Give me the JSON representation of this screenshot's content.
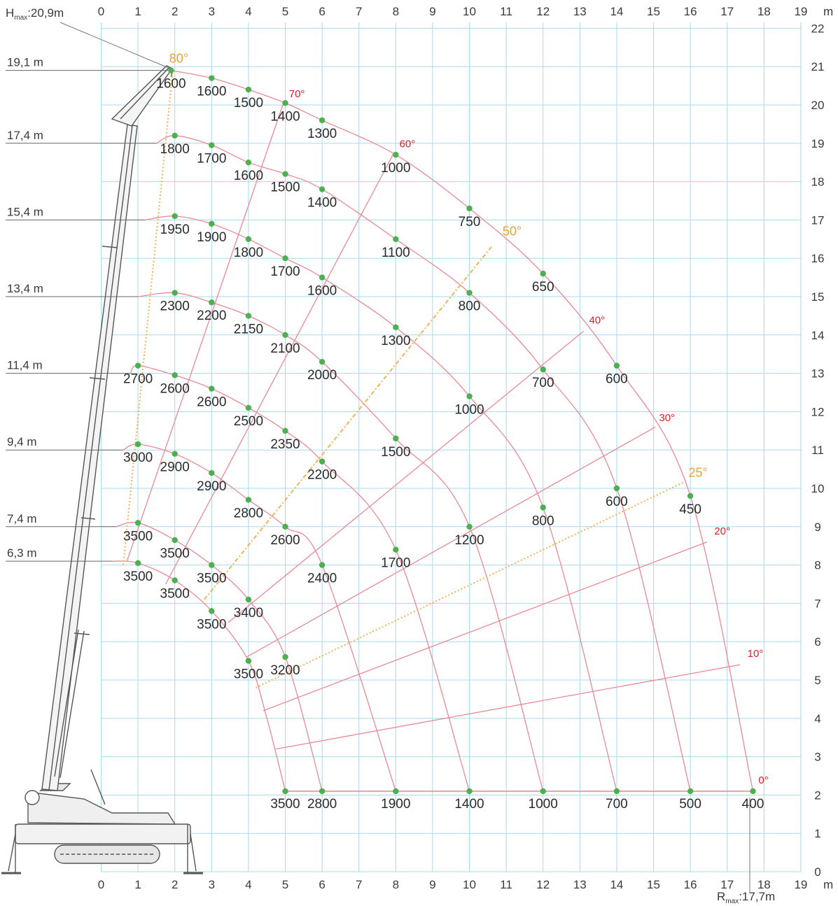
{
  "chart_data": {
    "type": "load-chart",
    "x_unit": "m",
    "y_unit": "m",
    "x_ticks": [
      "0",
      "1",
      "2",
      "3",
      "4",
      "5",
      "6",
      "7",
      "8",
      "9",
      "10",
      "11",
      "12",
      "13",
      "14",
      "15",
      "16",
      "17",
      "18",
      "19"
    ],
    "y_ticks": [
      "0",
      "1",
      "2",
      "3",
      "4",
      "5",
      "6",
      "7",
      "8",
      "9",
      "10",
      "11",
      "12",
      "13",
      "14",
      "15",
      "16",
      "17",
      "18",
      "19",
      "20",
      "21",
      "22"
    ],
    "xlim": [
      0,
      19
    ],
    "ylim": [
      0,
      22
    ],
    "grid": true,
    "annotations": {
      "hmax": {
        "prefix": "H",
        "sub": "max",
        "value": ":20,9m"
      },
      "rmax": {
        "prefix": "R",
        "sub": "max",
        "value": ":17,7m"
      }
    },
    "height_labels": [
      {
        "text": "19,1 m",
        "y": 20.9
      },
      {
        "text": "17,4 m",
        "y": 19.0
      },
      {
        "text": "15,4 m",
        "y": 17.0
      },
      {
        "text": "13,4 m",
        "y": 15.0
      },
      {
        "text": "11,4 m",
        "y": 13.0
      },
      {
        "text": "9,4 m",
        "y": 11.0
      },
      {
        "text": "7,4 m",
        "y": 9.0
      },
      {
        "text": "6,3 m",
        "y": 8.1
      }
    ],
    "angle_lines": [
      {
        "label": "80°",
        "style": "orange-dotted",
        "x": [
          0.6,
          1.95
        ],
        "y": [
          8.0,
          20.95
        ],
        "lx": 1.85,
        "ly": 21.1
      },
      {
        "label": "70°",
        "style": "red",
        "x": [
          0.7,
          4.95
        ],
        "y": [
          8.1,
          20.05
        ],
        "lx": 5.1,
        "ly": 20.2
      },
      {
        "label": "60°",
        "style": "red",
        "x": [
          1.75,
          7.95
        ],
        "y": [
          7.5,
          18.75
        ],
        "lx": 8.1,
        "ly": 18.9
      },
      {
        "label": "50°",
        "style": "orange-dotted",
        "x": [
          2.8,
          10.6
        ],
        "y": [
          7.1,
          16.3
        ],
        "lx": 10.9,
        "ly": 16.6
      },
      {
        "label": "40°",
        "style": "red",
        "x": [
          3.45,
          13.1
        ],
        "y": [
          6.5,
          14.1
        ],
        "lx": 13.25,
        "ly": 14.3
      },
      {
        "label": "30°",
        "style": "red",
        "x": [
          3.95,
          15.05
        ],
        "y": [
          5.6,
          11.6
        ],
        "lx": 15.15,
        "ly": 11.75
      },
      {
        "label": "25°",
        "style": "orange-dotted",
        "x": [
          4.2,
          15.8
        ],
        "y": [
          4.8,
          10.15
        ],
        "lx": 15.95,
        "ly": 10.3
      },
      {
        "label": "20°",
        "style": "red",
        "x": [
          4.4,
          16.45
        ],
        "y": [
          4.2,
          8.6
        ],
        "lx": 16.65,
        "ly": 8.8
      },
      {
        "label": "10°",
        "style": "red",
        "x": [
          4.75,
          17.35
        ],
        "y": [
          3.2,
          5.4
        ],
        "lx": 17.55,
        "ly": 5.6
      },
      {
        "label": "0°",
        "style": "red",
        "x": [
          5.0,
          17.7
        ],
        "y": [
          2.1,
          2.1
        ],
        "lx": 17.85,
        "ly": 2.3
      }
    ],
    "radius_curves": [
      {
        "name": "19,1 m",
        "x": [
          1.9,
          3.0,
          4.0,
          5.0,
          6.0,
          8.0,
          10.0,
          12.0,
          14.0,
          16.0,
          17.7
        ],
        "y": [
          20.9,
          20.7,
          20.4,
          20.05,
          19.6,
          18.7,
          17.3,
          15.6,
          13.2,
          9.8,
          2.1
        ]
      },
      {
        "name": "17,4 m",
        "x": [
          1.5,
          2.0,
          3.0,
          4.0,
          5.0,
          6.0,
          8.0,
          10.0,
          12.0,
          14.0,
          16.0
        ],
        "y": [
          19.0,
          19.2,
          18.95,
          18.5,
          18.2,
          17.8,
          16.5,
          15.1,
          13.1,
          10.0,
          2.1
        ]
      },
      {
        "name": "15,4 m",
        "x": [
          1.2,
          2.0,
          3.0,
          4.0,
          5.0,
          6.0,
          8.0,
          10.0,
          12.0,
          14.0
        ],
        "y": [
          17.0,
          17.1,
          16.9,
          16.5,
          16.0,
          15.5,
          14.2,
          12.4,
          9.5,
          2.1
        ]
      },
      {
        "name": "13,4 m",
        "x": [
          1.0,
          2.0,
          3.0,
          4.0,
          5.0,
          6.0,
          8.0,
          10.0,
          12.0
        ],
        "y": [
          15.0,
          15.1,
          14.85,
          14.5,
          14.0,
          13.3,
          11.3,
          9.0,
          2.1
        ]
      },
      {
        "name": "11,4 m",
        "x": [
          0.8,
          1.0,
          2.0,
          3.0,
          4.0,
          5.0,
          6.0,
          8.0,
          10.0
        ],
        "y": [
          13.0,
          13.2,
          12.95,
          12.6,
          12.1,
          11.5,
          10.7,
          8.4,
          2.1
        ]
      },
      {
        "name": "9,4 m",
        "x": [
          0.6,
          1.0,
          2.0,
          3.0,
          4.0,
          5.0,
          6.0,
          8.0
        ],
        "y": [
          11.0,
          11.15,
          10.9,
          10.4,
          9.7,
          9.0,
          8.0,
          2.1
        ]
      },
      {
        "name": "7,4 m",
        "x": [
          0.4,
          1.0,
          2.0,
          3.0,
          4.0,
          5.0,
          6.0
        ],
        "y": [
          9.0,
          9.1,
          8.65,
          8.0,
          7.1,
          5.6,
          2.1
        ]
      },
      {
        "name": "6,3 m",
        "x": [
          0.3,
          1.0,
          2.0,
          3.0,
          4.0,
          4.5,
          5.0
        ],
        "y": [
          8.1,
          8.05,
          7.6,
          6.8,
          5.5,
          4.0,
          2.1
        ]
      }
    ],
    "load_points": [
      {
        "x": 1.9,
        "y": 20.9,
        "label": "1600"
      },
      {
        "x": 3.0,
        "y": 20.7,
        "label": "1600"
      },
      {
        "x": 4.0,
        "y": 20.4,
        "label": "1500"
      },
      {
        "x": 5.0,
        "y": 20.05,
        "label": "1400"
      },
      {
        "x": 6.0,
        "y": 19.6,
        "label": "1300"
      },
      {
        "x": 8.0,
        "y": 18.7,
        "label": "1000"
      },
      {
        "x": 10.0,
        "y": 17.3,
        "label": "750"
      },
      {
        "x": 12.0,
        "y": 15.6,
        "label": "650"
      },
      {
        "x": 14.0,
        "y": 13.2,
        "label": "600"
      },
      {
        "x": 16.0,
        "y": 9.8,
        "label": "450"
      },
      {
        "x": 2.0,
        "y": 19.2,
        "label": "1800"
      },
      {
        "x": 3.0,
        "y": 18.95,
        "label": "1700"
      },
      {
        "x": 4.0,
        "y": 18.5,
        "label": "1600"
      },
      {
        "x": 5.0,
        "y": 18.2,
        "label": "1500"
      },
      {
        "x": 6.0,
        "y": 17.8,
        "label": "1400"
      },
      {
        "x": 8.0,
        "y": 16.5,
        "label": "1100"
      },
      {
        "x": 10.0,
        "y": 15.1,
        "label": "800"
      },
      {
        "x": 12.0,
        "y": 13.1,
        "label": "700"
      },
      {
        "x": 14.0,
        "y": 10.0,
        "label": "600"
      },
      {
        "x": 2.0,
        "y": 17.1,
        "label": "1950"
      },
      {
        "x": 3.0,
        "y": 16.9,
        "label": "1900"
      },
      {
        "x": 4.0,
        "y": 16.5,
        "label": "1800"
      },
      {
        "x": 5.0,
        "y": 16.0,
        "label": "1700"
      },
      {
        "x": 6.0,
        "y": 15.5,
        "label": "1600"
      },
      {
        "x": 8.0,
        "y": 14.2,
        "label": "1300"
      },
      {
        "x": 10.0,
        "y": 12.4,
        "label": "1000"
      },
      {
        "x": 12.0,
        "y": 9.5,
        "label": "800"
      },
      {
        "x": 2.0,
        "y": 15.1,
        "label": "2300"
      },
      {
        "x": 3.0,
        "y": 14.85,
        "label": "2200"
      },
      {
        "x": 4.0,
        "y": 14.5,
        "label": "2150"
      },
      {
        "x": 5.0,
        "y": 14.0,
        "label": "2100"
      },
      {
        "x": 6.0,
        "y": 13.3,
        "label": "2000"
      },
      {
        "x": 8.0,
        "y": 11.3,
        "label": "1500"
      },
      {
        "x": 10.0,
        "y": 9.0,
        "label": "1200"
      },
      {
        "x": 1.0,
        "y": 13.2,
        "label": "2700"
      },
      {
        "x": 2.0,
        "y": 12.95,
        "label": "2600"
      },
      {
        "x": 3.0,
        "y": 12.6,
        "label": "2600"
      },
      {
        "x": 4.0,
        "y": 12.1,
        "label": "2500"
      },
      {
        "x": 5.0,
        "y": 11.5,
        "label": "2350"
      },
      {
        "x": 6.0,
        "y": 10.7,
        "label": "2200"
      },
      {
        "x": 8.0,
        "y": 8.4,
        "label": "1700"
      },
      {
        "x": 1.0,
        "y": 11.15,
        "label": "3000"
      },
      {
        "x": 2.0,
        "y": 10.9,
        "label": "2900"
      },
      {
        "x": 3.0,
        "y": 10.4,
        "label": "2900"
      },
      {
        "x": 4.0,
        "y": 9.7,
        "label": "2800"
      },
      {
        "x": 5.0,
        "y": 9.0,
        "label": "2600"
      },
      {
        "x": 6.0,
        "y": 8.0,
        "label": "2400"
      },
      {
        "x": 1.0,
        "y": 9.1,
        "label": "3500"
      },
      {
        "x": 2.0,
        "y": 8.65,
        "label": "3500"
      },
      {
        "x": 3.0,
        "y": 8.0,
        "label": "3500"
      },
      {
        "x": 4.0,
        "y": 7.1,
        "label": "3400"
      },
      {
        "x": 5.0,
        "y": 5.6,
        "label": "3200"
      },
      {
        "x": 1.0,
        "y": 8.05,
        "label": "3500"
      },
      {
        "x": 2.0,
        "y": 7.6,
        "label": "3500"
      },
      {
        "x": 3.0,
        "y": 6.8,
        "label": "3500"
      },
      {
        "x": 4.0,
        "y": 5.5,
        "label": "3500"
      },
      {
        "x": 5.0,
        "y": 2.1,
        "label": "3500"
      },
      {
        "x": 6.0,
        "y": 2.1,
        "label": "2800"
      },
      {
        "x": 8.0,
        "y": 2.1,
        "label": "1900"
      },
      {
        "x": 10.0,
        "y": 2.1,
        "label": "1400"
      },
      {
        "x": 12.0,
        "y": 2.1,
        "label": "1000"
      },
      {
        "x": 14.0,
        "y": 2.1,
        "label": "700"
      },
      {
        "x": 16.0,
        "y": 2.1,
        "label": "500"
      },
      {
        "x": 17.7,
        "y": 2.1,
        "label": "400"
      }
    ]
  },
  "colors": {
    "grid": "#a9d9ec",
    "red_line": "#e88a96",
    "orange_line": "#f2b25a",
    "point": "#4cb050",
    "angle_red": "#d8202a",
    "angle_orange": "#f0a030",
    "crane": "#555555"
  }
}
